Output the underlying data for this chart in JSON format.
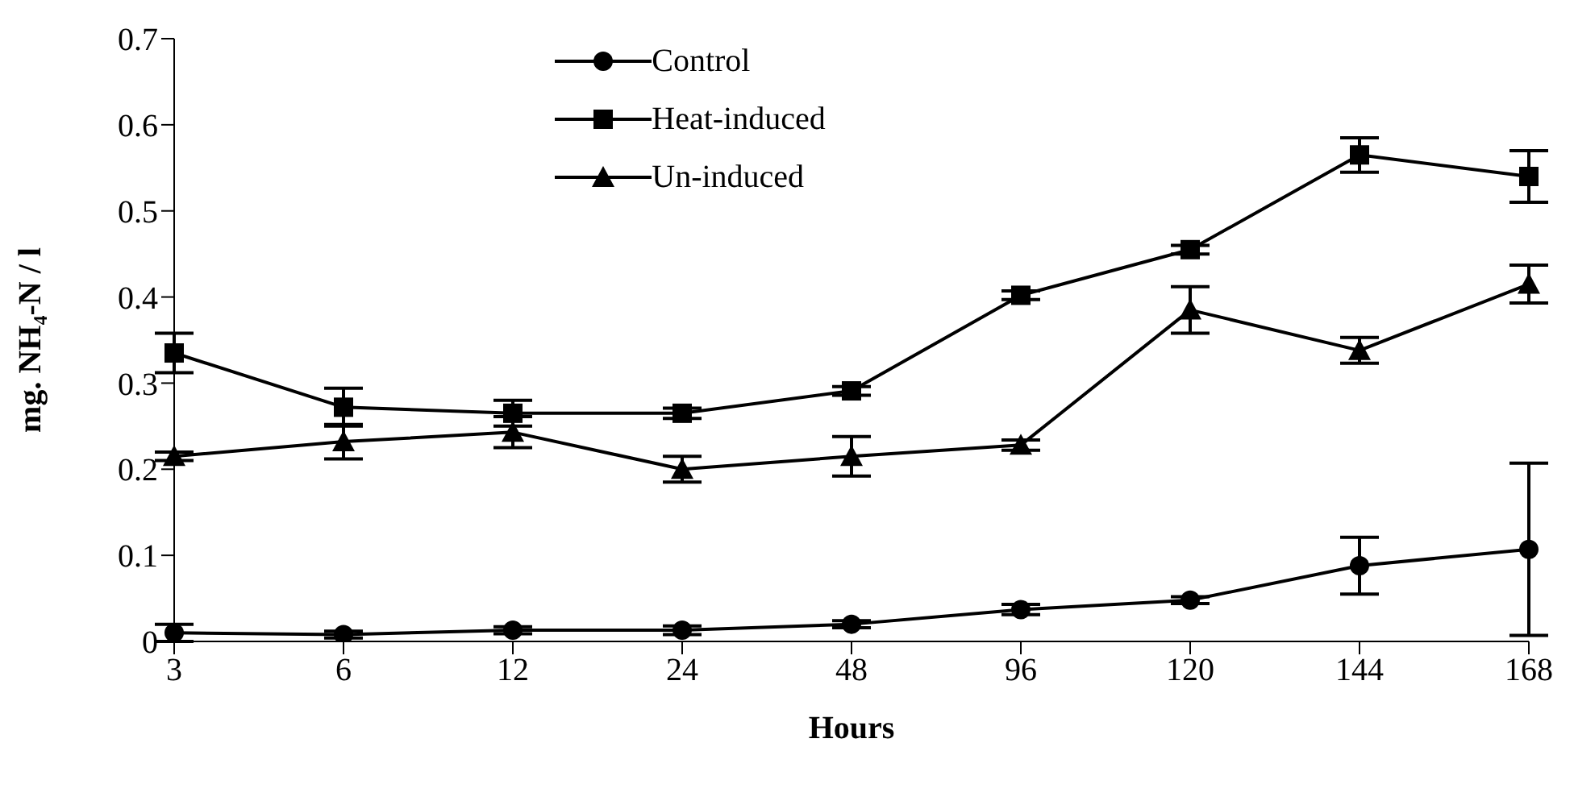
{
  "chart_data": {
    "type": "line",
    "xlabel": "Hours",
    "ylabel": "mg. NH₄-N / l",
    "categories": [
      "3",
      "6",
      "12",
      "24",
      "48",
      "96",
      "120",
      "144",
      "168"
    ],
    "ylim": [
      0,
      0.7
    ],
    "yticks": [
      0,
      0.1,
      0.2,
      0.3,
      0.4,
      0.5,
      0.6,
      0.7
    ],
    "legend": "top",
    "line_style": "solid",
    "series": [
      {
        "name": "Control",
        "color": "#000000",
        "marker": "circle",
        "values": [
          0.01,
          0.008,
          0.013,
          0.013,
          0.02,
          0.037,
          0.048,
          0.088,
          0.107
        ],
        "errors": [
          0.01,
          0.004,
          0.004,
          0.005,
          0.004,
          0.006,
          0.004,
          0.033,
          0.1
        ]
      },
      {
        "name": "Heat-induced",
        "color": "#000000",
        "marker": "square",
        "values": [
          0.335,
          0.272,
          0.265,
          0.265,
          0.291,
          0.402,
          0.455,
          0.565,
          0.54
        ],
        "errors": [
          0.023,
          0.022,
          0.015,
          0.006,
          0.005,
          0.005,
          0.005,
          0.02,
          0.03
        ]
      },
      {
        "name": "Un-induced",
        "color": "#000000",
        "marker": "triangle",
        "values": [
          0.215,
          0.232,
          0.243,
          0.2,
          0.215,
          0.228,
          0.385,
          0.338,
          0.415
        ],
        "errors": [
          0.005,
          0.02,
          0.018,
          0.015,
          0.023,
          0.006,
          0.027,
          0.015,
          0.022
        ]
      }
    ]
  }
}
